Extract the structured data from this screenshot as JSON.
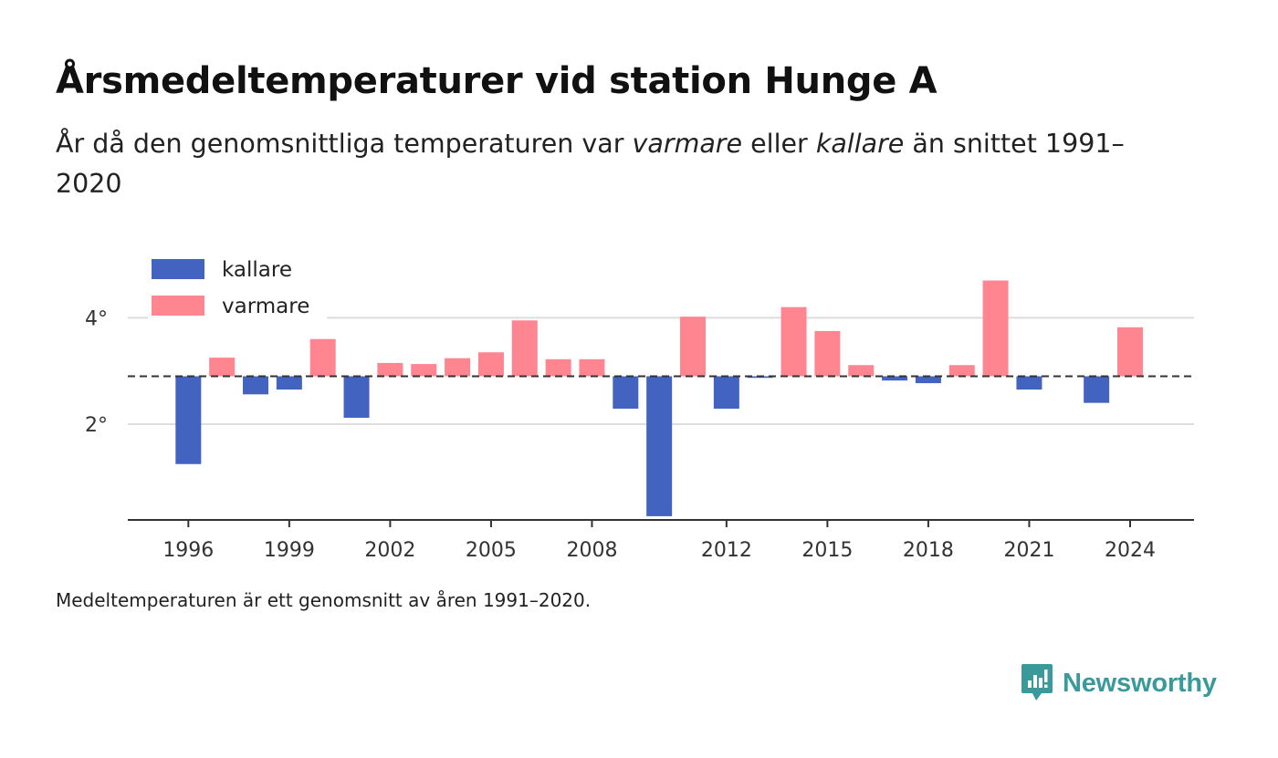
{
  "header": {
    "title": "Årsmedeltemperaturer vid station Hunge A",
    "subtitle_pre": "År då den genomsnittliga temperaturen var ",
    "subtitle_warm": "varmare",
    "subtitle_mid": " eller ",
    "subtitle_cold": "kallare",
    "subtitle_post": " än snittet 1991–2020"
  },
  "footnote": "Medeltemperaturen är ett genomsnitt av åren 1991–2020.",
  "brand": {
    "name": "Newsworthy",
    "icon": "newsworthy-logo-icon",
    "color": "#3a9a9b"
  },
  "colors": {
    "cold": "#4263c0",
    "warm": "#ff8591",
    "reference": "#333333",
    "grid": "#dddddd"
  },
  "chart_data": {
    "type": "bar",
    "baseline": 2.9,
    "baseline_style": "dashed",
    "x": [
      1996,
      1997,
      1998,
      1999,
      2000,
      2001,
      2002,
      2003,
      2004,
      2005,
      2006,
      2007,
      2008,
      2009,
      2010,
      2011,
      2012,
      2013,
      2014,
      2015,
      2016,
      2017,
      2018,
      2019,
      2020,
      2021,
      2022,
      2023,
      2024
    ],
    "series": [
      {
        "name": "kallare",
        "color": "#4263c0",
        "values": [
          1.25,
          null,
          2.56,
          2.65,
          null,
          2.12,
          null,
          null,
          null,
          null,
          null,
          null,
          null,
          2.29,
          0.27,
          null,
          2.29,
          2.87,
          null,
          null,
          null,
          2.82,
          2.77,
          null,
          null,
          2.65,
          null,
          2.4,
          null
        ]
      },
      {
        "name": "varmare",
        "color": "#ff8591",
        "values": [
          null,
          3.25,
          null,
          null,
          3.6,
          null,
          3.15,
          3.13,
          3.24,
          3.35,
          3.95,
          3.22,
          3.22,
          null,
          null,
          4.02,
          null,
          null,
          4.2,
          3.75,
          3.11,
          null,
          null,
          3.11,
          4.7,
          null,
          null,
          null,
          3.82
        ]
      }
    ],
    "y_ticks": [
      {
        "value": 2,
        "label": "2°"
      },
      {
        "value": 4,
        "label": "4°"
      }
    ],
    "x_ticks": [
      {
        "value": 1996,
        "label": "1996"
      },
      {
        "value": 1999,
        "label": "1999"
      },
      {
        "value": 2002,
        "label": "2002"
      },
      {
        "value": 2005,
        "label": "2005"
      },
      {
        "value": 2008,
        "label": "2008"
      },
      {
        "value": 2012,
        "label": "2012"
      },
      {
        "value": 2015,
        "label": "2015"
      },
      {
        "value": 2018,
        "label": "2018"
      },
      {
        "value": 2021,
        "label": "2021"
      },
      {
        "value": 2024,
        "label": "2024"
      }
    ],
    "ylim": [
      0.2,
      5.0
    ],
    "xlim": [
      1994.2,
      2025.9
    ],
    "grid": true,
    "legend": "top-left"
  }
}
